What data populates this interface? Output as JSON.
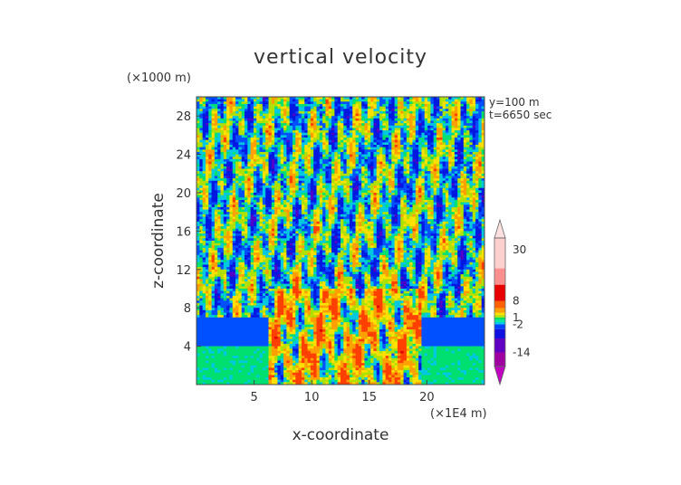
{
  "chart_data": {
    "type": "heatmap",
    "title": "vertical velocity",
    "xlabel": "x-coordinate",
    "ylabel": "z-coordinate",
    "x_unit": "(×1E4 m)",
    "y_unit": "(×1000 m)",
    "annotations": [
      "y=100 m",
      "t=6650 sec"
    ],
    "xlim": [
      0,
      25
    ],
    "ylim": [
      0,
      30
    ],
    "x_ticks": [
      5,
      10,
      15,
      20
    ],
    "y_ticks": [
      4,
      8,
      12,
      16,
      20,
      24,
      28
    ],
    "colorbar": {
      "labels": [
        "30",
        "8",
        "1",
        "-2",
        "-14"
      ],
      "label_values": [
        30,
        8,
        1,
        -2,
        -14
      ],
      "range": [
        -20,
        35
      ],
      "extend": "both"
    },
    "grid": false
  }
}
